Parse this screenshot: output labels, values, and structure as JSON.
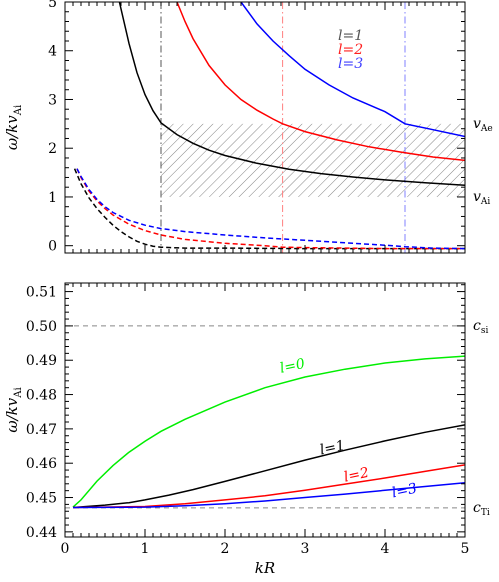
{
  "chart_data": [
    {
      "type": "line",
      "panel": "top",
      "xlim": [
        0,
        5
      ],
      "ylim": [
        -0.15,
        5
      ],
      "xticks": [
        0,
        1,
        2,
        3,
        4,
        5
      ],
      "yticks": [
        0,
        1,
        2,
        3,
        4,
        5
      ],
      "ylabel": "ω/kv_Ai",
      "right_labels": [
        {
          "text": "v",
          "sub": "Ae",
          "y": 2.5
        },
        {
          "text": "v",
          "sub": "Ai",
          "y": 1.0
        }
      ],
      "hatched_band": {
        "x": [
          1.2,
          5
        ],
        "y": [
          1.0,
          2.5
        ]
      },
      "vlines": [
        {
          "x": 1.2,
          "color": "#555555",
          "name": "l=1"
        },
        {
          "x": 2.72,
          "color": "#ff8080",
          "name": "l=2"
        },
        {
          "x": 4.25,
          "color": "#8080ff",
          "name": "l=3"
        }
      ],
      "legend": {
        "position": "top-right",
        "entries": [
          {
            "label": "l=1",
            "color": "#555555"
          },
          {
            "label": "l=2",
            "color": "#ff2020"
          },
          {
            "label": "l=3",
            "color": "#4040ff"
          }
        ]
      },
      "series": [
        {
          "name": "l=1",
          "color": "#000000",
          "style": "solid",
          "x": [
            0.68,
            0.8,
            0.9,
            1.0,
            1.1,
            1.2,
            1.4,
            1.6,
            1.8,
            2.0,
            2.4,
            2.8,
            3.2,
            3.6,
            4.0,
            4.5,
            5.0
          ],
          "y": [
            5.0,
            4.15,
            3.55,
            3.1,
            2.77,
            2.52,
            2.28,
            2.1,
            1.96,
            1.85,
            1.69,
            1.57,
            1.48,
            1.41,
            1.35,
            1.29,
            1.24
          ]
        },
        {
          "name": "l=2",
          "color": "#ff0000",
          "style": "solid",
          "x": [
            1.4,
            1.5,
            1.6,
            1.8,
            2.0,
            2.2,
            2.4,
            2.6,
            2.72,
            3.0,
            3.4,
            3.8,
            4.2,
            4.6,
            5.0
          ],
          "y": [
            5.0,
            4.6,
            4.25,
            3.7,
            3.3,
            3.0,
            2.78,
            2.6,
            2.5,
            2.34,
            2.17,
            2.03,
            1.92,
            1.82,
            1.75
          ]
        },
        {
          "name": "l=3",
          "color": "#0000ff",
          "style": "solid",
          "x": [
            2.2,
            2.4,
            2.6,
            2.8,
            3.0,
            3.3,
            3.6,
            4.0,
            4.25,
            4.6,
            5.0
          ],
          "y": [
            5.0,
            4.55,
            4.2,
            3.9,
            3.62,
            3.3,
            3.03,
            2.75,
            2.5,
            2.38,
            2.24
          ]
        },
        {
          "name": "l=1 dashed",
          "color": "#000000",
          "style": "dashed",
          "x": [
            0.12,
            0.2,
            0.3,
            0.4,
            0.5,
            0.6,
            0.7,
            0.8,
            0.9,
            1.0,
            1.1,
            1.2,
            1.5,
            2.0,
            3.0,
            4.0,
            5.0
          ],
          "y": [
            1.58,
            1.27,
            0.98,
            0.76,
            0.58,
            0.42,
            0.29,
            0.18,
            0.09,
            0.03,
            -0.01,
            -0.03,
            -0.05,
            -0.05,
            -0.06,
            -0.06,
            -0.06
          ]
        },
        {
          "name": "l=2 dashed",
          "color": "#ff0000",
          "style": "dashed",
          "x": [
            0.15,
            0.2,
            0.3,
            0.4,
            0.5,
            0.6,
            0.8,
            1.0,
            1.2,
            1.5,
            2.0,
            2.5,
            2.72,
            3.0,
            4.0,
            5.0
          ],
          "y": [
            1.58,
            1.4,
            1.12,
            0.92,
            0.76,
            0.63,
            0.44,
            0.31,
            0.22,
            0.13,
            0.05,
            0.0,
            -0.03,
            -0.04,
            -0.06,
            -0.06
          ]
        },
        {
          "name": "l=3 dashed",
          "color": "#0000ff",
          "style": "dashed",
          "x": [
            0.15,
            0.2,
            0.3,
            0.4,
            0.5,
            0.6,
            0.8,
            1.0,
            1.2,
            1.5,
            2.0,
            2.5,
            3.0,
            3.5,
            4.0,
            4.25,
            4.6,
            5.0
          ],
          "y": [
            1.58,
            1.42,
            1.15,
            0.95,
            0.8,
            0.68,
            0.52,
            0.42,
            0.35,
            0.29,
            0.22,
            0.16,
            0.11,
            0.06,
            0.01,
            -0.02,
            -0.05,
            -0.06
          ]
        }
      ]
    },
    {
      "type": "line",
      "panel": "bottom",
      "xlabel": "kR",
      "xlim": [
        0,
        5
      ],
      "ylim": [
        0.4385,
        0.5125
      ],
      "xticks": [
        0,
        1,
        2,
        3,
        4,
        5
      ],
      "yticks": [
        0.44,
        0.45,
        0.46,
        0.47,
        0.48,
        0.49,
        0.5,
        0.51
      ],
      "ytick_labels": [
        "0.44",
        "0.45",
        "0.46",
        "0.47",
        "0.48",
        "0.49",
        "0.50",
        "0.51"
      ],
      "ylabel": "ω/kv_Ai",
      "hlines": [
        {
          "y": 0.5,
          "label": "c",
          "sub": "si"
        },
        {
          "y": 0.447,
          "label": "c",
          "sub": "Ti"
        }
      ],
      "series": [
        {
          "name": "l=0",
          "color": "#00ee00",
          "label_pos": [
            2.7,
            0.4863
          ],
          "x": [
            0.1,
            0.2,
            0.4,
            0.6,
            0.8,
            1.0,
            1.2,
            1.5,
            2.0,
            2.5,
            3.0,
            3.5,
            4.0,
            4.5,
            5.0
          ],
          "y": [
            0.4472,
            0.4493,
            0.4548,
            0.4593,
            0.4632,
            0.4664,
            0.4693,
            0.4728,
            0.4778,
            0.482,
            0.4851,
            0.4874,
            0.4892,
            0.4904,
            0.4912
          ]
        },
        {
          "name": "l=1",
          "color": "#000000",
          "label_pos": [
            3.2,
            0.4625
          ],
          "x": [
            0.1,
            0.5,
            0.8,
            1.0,
            1.3,
            1.6,
            2.0,
            2.5,
            3.0,
            3.5,
            4.0,
            4.5,
            5.0
          ],
          "y": [
            0.4471,
            0.4478,
            0.4485,
            0.4493,
            0.4507,
            0.4523,
            0.4547,
            0.4578,
            0.4609,
            0.4638,
            0.4665,
            0.469,
            0.4712
          ]
        },
        {
          "name": "l=2",
          "color": "#ff0000",
          "label_pos": [
            3.5,
            0.4546
          ],
          "x": [
            0.1,
            1.0,
            1.5,
            2.0,
            2.5,
            3.0,
            3.5,
            4.0,
            4.5,
            5.0
          ],
          "y": [
            0.4471,
            0.4474,
            0.4482,
            0.4493,
            0.4505,
            0.4521,
            0.4539,
            0.4557,
            0.4576,
            0.4595
          ]
        },
        {
          "name": "l=3",
          "color": "#0000ff",
          "label_pos": [
            4.1,
            0.45
          ],
          "x": [
            0.1,
            1.0,
            1.5,
            2.0,
            2.5,
            3.0,
            3.5,
            4.0,
            4.5,
            5.0
          ],
          "y": [
            0.4471,
            0.4472,
            0.4476,
            0.4482,
            0.449,
            0.45,
            0.451,
            0.4521,
            0.4532,
            0.4543
          ]
        }
      ]
    }
  ]
}
